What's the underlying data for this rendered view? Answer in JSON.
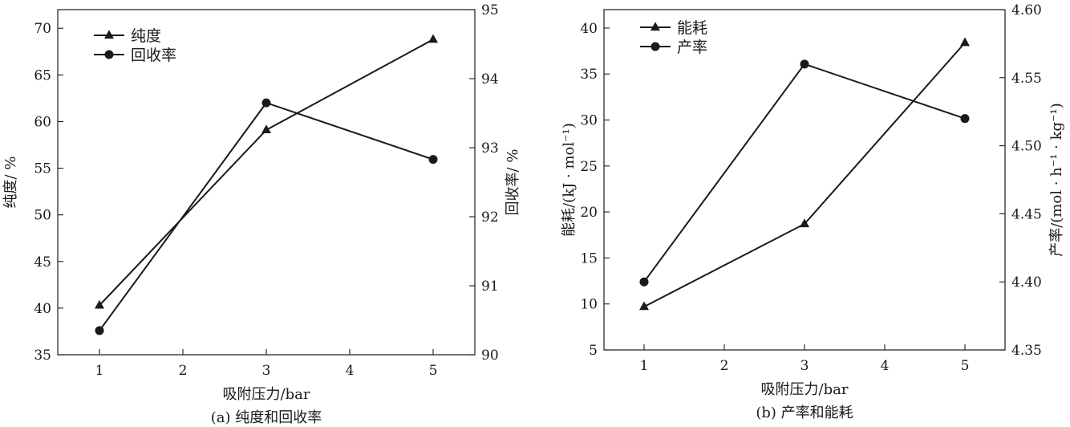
{
  "chart_data": [
    {
      "type": "line",
      "caption": "(a) 纯度和回收率",
      "xlabel": "吸附压力/bar",
      "xlim": [
        0.5,
        5.5
      ],
      "xticks": [
        1,
        2,
        3,
        4,
        5
      ],
      "ylabel_left": "纯度/ %",
      "ylim_left": [
        35,
        72
      ],
      "yticks_left": [
        35,
        40,
        45,
        50,
        55,
        60,
        65,
        70
      ],
      "ylabel_right": "回收率/ %",
      "ylim_right": [
        90,
        95
      ],
      "yticks_right": [
        90,
        91,
        92,
        93,
        94,
        95
      ],
      "legend_position": "top-left",
      "series": [
        {
          "name": "纯度",
          "axis": "left",
          "marker": "triangle",
          "x": [
            1,
            3,
            5
          ],
          "y": [
            40.3,
            59.1,
            68.8
          ]
        },
        {
          "name": "回收率",
          "axis": "right",
          "marker": "circle",
          "x": [
            1,
            3,
            5
          ],
          "y": [
            90.35,
            93.65,
            92.83
          ]
        }
      ]
    },
    {
      "type": "line",
      "caption": "(b) 产率和能耗",
      "xlabel": "吸附压力/bar",
      "xlim": [
        0.5,
        5.5
      ],
      "xticks": [
        1,
        2,
        3,
        4,
        5
      ],
      "ylabel_left": "能耗/(kJ · mol⁻¹)",
      "ylim_left": [
        5,
        42
      ],
      "yticks_left": [
        5,
        10,
        15,
        20,
        25,
        30,
        35,
        40
      ],
      "ylabel_right": "产率/(mol · h⁻¹ · kg⁻¹)",
      "ylim_right": [
        4.35,
        4.6
      ],
      "yticks_right": [
        "4.35",
        "4.40",
        "4.45",
        "4.50",
        "4.55",
        "4.60"
      ],
      "legend_position": "top-left",
      "series": [
        {
          "name": "能耗",
          "axis": "left",
          "marker": "triangle",
          "x": [
            1,
            3,
            5
          ],
          "y": [
            9.7,
            18.7,
            38.4
          ]
        },
        {
          "name": "产率",
          "axis": "right",
          "marker": "circle",
          "x": [
            1,
            3,
            5
          ],
          "y": [
            4.4,
            4.56,
            4.52
          ]
        }
      ]
    }
  ]
}
